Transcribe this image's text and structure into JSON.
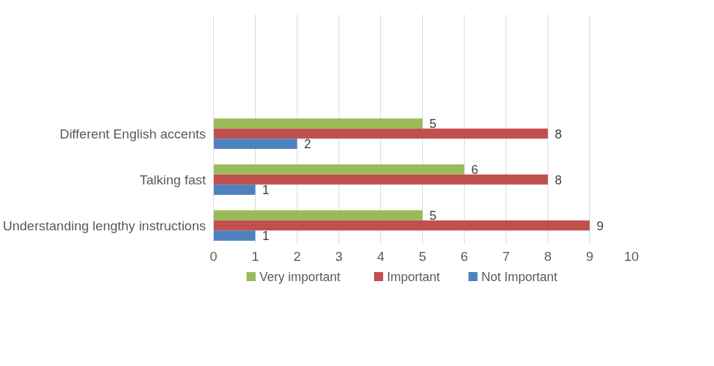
{
  "chart_data": {
    "type": "bar",
    "orientation": "horizontal",
    "categories": [
      "Different English accents",
      "Talking fast",
      "Understanding lengthy instructions"
    ],
    "series": [
      {
        "name": "Very important",
        "color": "#9bbb59",
        "values": [
          5,
          6,
          5
        ]
      },
      {
        "name": "Important",
        "color": "#c0504d",
        "values": [
          8,
          8,
          9
        ]
      },
      {
        "name": "Not Important",
        "color": "#4f81bd",
        "values": [
          2,
          1,
          1
        ]
      }
    ],
    "xlim": [
      0,
      10
    ],
    "xticks": [
      0,
      1,
      2,
      3,
      4,
      5,
      6,
      7,
      8,
      9,
      10
    ],
    "grid": "x",
    "legend": "bottom",
    "data_labels": true
  }
}
